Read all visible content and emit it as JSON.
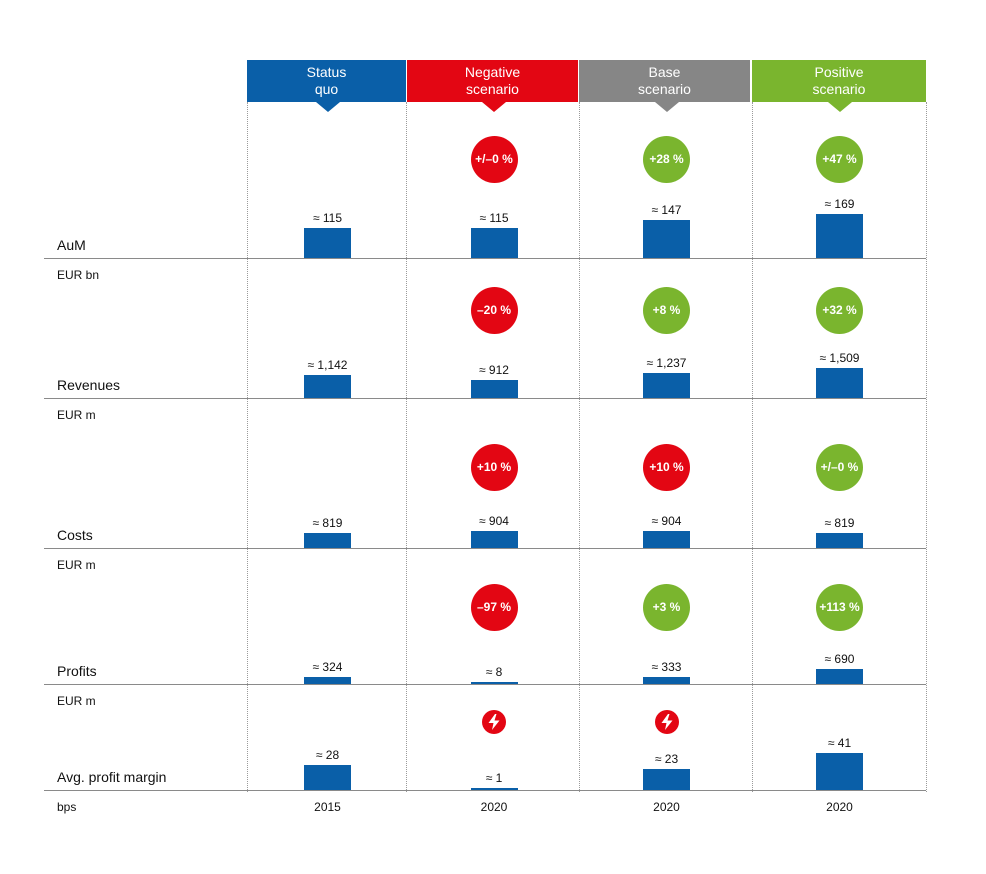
{
  "colors": {
    "bar": "#0a5fa8",
    "red": "#e30613",
    "green": "#7ab52e",
    "grey": "#868686",
    "blue": "#0a5fa8"
  },
  "columns": [
    {
      "label": "Status\nquo",
      "color": "#0a5fa8",
      "year": "2015"
    },
    {
      "label": "Negative\nscenario",
      "color": "#e30613",
      "year": "2020"
    },
    {
      "label": "Base\nscenario",
      "color": "#868686",
      "year": "2020"
    },
    {
      "label": "Positive\nscenario",
      "color": "#7ab52e",
      "year": "2020"
    }
  ],
  "chart_data": {
    "type": "bar",
    "categories": [
      "Status quo",
      "Negative scenario",
      "Base scenario",
      "Positive scenario"
    ],
    "x_labels": [
      "2015",
      "2020",
      "2020",
      "2020"
    ],
    "metrics": [
      {
        "name": "AuM",
        "unit": "EUR bn",
        "values": [
          115,
          115,
          147,
          169
        ],
        "value_labels": [
          "≈ 115",
          "≈ 115",
          "≈ 147",
          "≈ 169"
        ],
        "changes": [
          null,
          {
            "text": "+/–0 %",
            "color": "red"
          },
          {
            "text": "+28 %",
            "color": "green"
          },
          {
            "text": "+47 %",
            "color": "green"
          }
        ]
      },
      {
        "name": "Revenues",
        "unit": "EUR m",
        "values": [
          1142,
          912,
          1237,
          1509
        ],
        "value_labels": [
          "≈ 1,142",
          "≈ 912",
          "≈ 1,237",
          "≈ 1,509"
        ],
        "changes": [
          null,
          {
            "text": "–20 %",
            "color": "red"
          },
          {
            "text": "+8 %",
            "color": "green"
          },
          {
            "text": "+32 %",
            "color": "green"
          }
        ]
      },
      {
        "name": "Costs",
        "unit": "EUR m",
        "values": [
          819,
          904,
          904,
          819
        ],
        "value_labels": [
          "≈ 819",
          "≈ 904",
          "≈ 904",
          "≈ 819"
        ],
        "changes": [
          null,
          {
            "text": "+10 %",
            "color": "red"
          },
          {
            "text": "+10 %",
            "color": "red"
          },
          {
            "text": "+/–0 %",
            "color": "green"
          }
        ]
      },
      {
        "name": "Profits",
        "unit": "EUR m",
        "values": [
          324,
          8,
          333,
          690
        ],
        "value_labels": [
          "≈ 324",
          "≈ 8",
          "≈ 333",
          "≈ 690"
        ],
        "changes": [
          null,
          {
            "text": "–97 %",
            "color": "red"
          },
          {
            "text": "+3 %",
            "color": "green"
          },
          {
            "text": "+113 %",
            "color": "green"
          }
        ]
      },
      {
        "name": "Avg. profit margin",
        "unit": "bps",
        "values": [
          28,
          1,
          23,
          41
        ],
        "value_labels": [
          "≈ 28",
          "≈ 1",
          "≈ 23",
          "≈ 41"
        ],
        "warnings": [
          false,
          true,
          true,
          false
        ]
      }
    ]
  }
}
